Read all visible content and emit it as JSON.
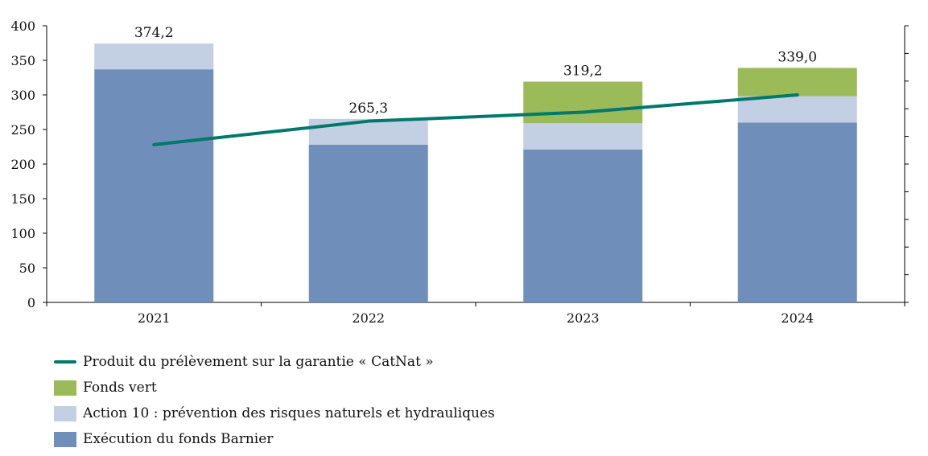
{
  "chart_data": {
    "type": "bar",
    "stacked": true,
    "categories": [
      "2021",
      "2022",
      "2023",
      "2024"
    ],
    "series": [
      {
        "name": "Exécution du fonds Barnier",
        "color": "#6f8fba",
        "values": [
          337,
          228,
          221,
          260
        ]
      },
      {
        "name": "Action 10 : prévention des risques naturels et hydrauliques",
        "color": "#c3cfe3",
        "values": [
          37.2,
          37.3,
          38,
          38
        ]
      },
      {
        "name": "Fonds vert",
        "color": "#9bbb59",
        "values": [
          0,
          0,
          60.2,
          41
        ]
      }
    ],
    "line": {
      "name": "Produit du prélèvement sur la garantie « CatNat »",
      "color": "#00796b",
      "values": [
        228,
        262,
        275,
        300
      ]
    },
    "totals": [
      "374,2",
      "265,3",
      "319,2",
      "339,0"
    ],
    "ylim": [
      0,
      400
    ],
    "yticks": [
      0,
      50,
      100,
      150,
      200,
      250,
      300,
      350,
      400
    ],
    "title": "",
    "xlabel": "",
    "ylabel": ""
  },
  "legend": {
    "items": [
      {
        "key": "line",
        "label": "Produit du prélèvement sur la garantie « CatNat »",
        "color": "#00796b"
      },
      {
        "key": "fonds-vert",
        "label": "Fonds vert",
        "color": "#9bbb59"
      },
      {
        "key": "action-10",
        "label": "Action 10 : prévention des risques naturels et hydrauliques",
        "color": "#c3cfe3"
      },
      {
        "key": "barnier",
        "label": "Exécution du fonds Barnier",
        "color": "#6f8fba"
      }
    ]
  }
}
